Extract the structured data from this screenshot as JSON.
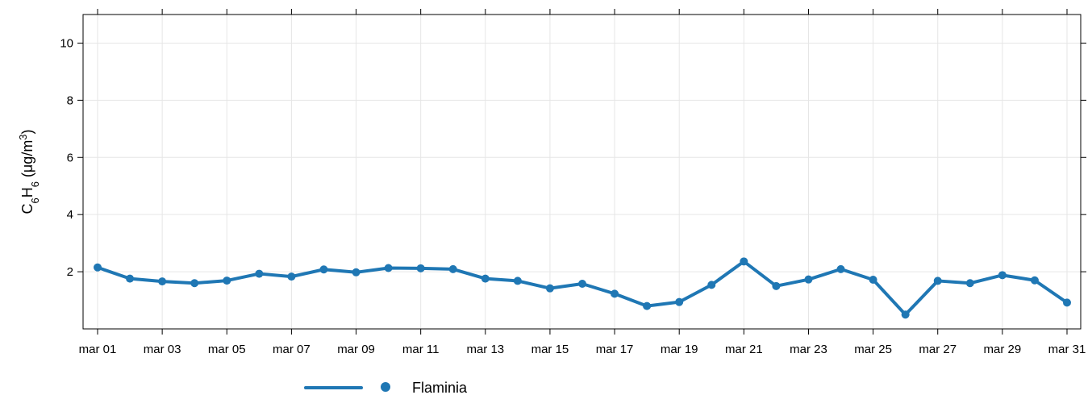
{
  "chart_data": {
    "type": "line",
    "ylabel": {
      "prefix": "C",
      "sub1": "6",
      "mid": "H",
      "sub2": "6",
      "units_open": " (μg/m",
      "sup": "3",
      "units_close": ")"
    },
    "ylim": [
      0,
      11
    ],
    "yticks": [
      2,
      4,
      6,
      8,
      10
    ],
    "xlim": [
      1,
      31
    ],
    "xtick_days": [
      1,
      3,
      5,
      7,
      9,
      11,
      13,
      15,
      17,
      19,
      21,
      23,
      25,
      27,
      29,
      31
    ],
    "xtick_labels": [
      "mar 01",
      "mar 03",
      "mar 05",
      "mar 07",
      "mar 09",
      "mar 11",
      "mar 13",
      "mar 15",
      "mar 17",
      "mar 19",
      "mar 21",
      "mar 23",
      "mar 25",
      "mar 27",
      "mar 29",
      "mar 31"
    ],
    "grid": true,
    "legend_position": "bottom",
    "series": [
      {
        "name": "Flaminia",
        "color": "#1F77B4",
        "x": [
          1,
          2,
          3,
          4,
          5,
          6,
          7,
          8,
          9,
          10,
          11,
          12,
          13,
          14,
          15,
          16,
          17,
          18,
          19,
          20,
          21,
          22,
          23,
          24,
          25,
          26,
          27,
          28,
          29,
          30,
          31
        ],
        "values": [
          2.15,
          1.76,
          1.66,
          1.6,
          1.69,
          1.93,
          1.83,
          2.08,
          1.98,
          2.13,
          2.12,
          2.09,
          1.76,
          1.68,
          1.42,
          1.58,
          1.23,
          0.8,
          0.94,
          1.54,
          2.36,
          1.5,
          1.73,
          2.09,
          1.72,
          0.5,
          1.68,
          1.6,
          1.88,
          1.7,
          0.92
        ]
      }
    ]
  }
}
